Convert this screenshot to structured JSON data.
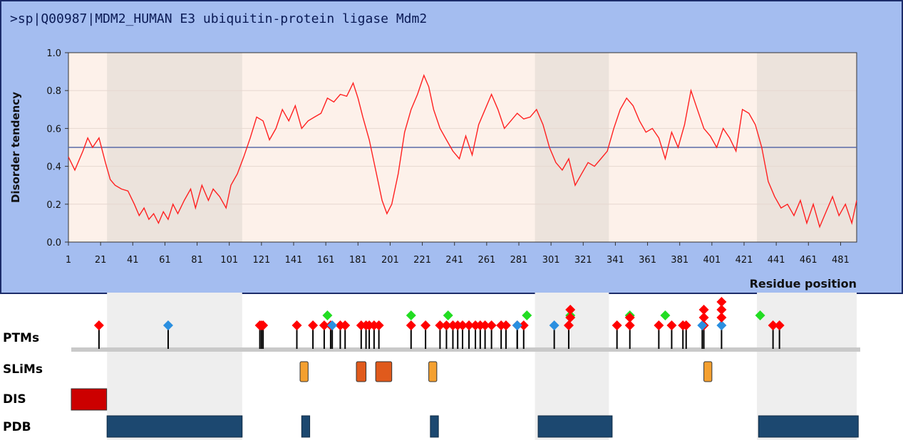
{
  "header": {
    "title": ">sp|Q00987|MDM2_HUMAN E3 ubiquitin-protein ligase Mdm2"
  },
  "colors": {
    "panel_bg": "#a4bdf0",
    "plot_bg": "#fdf1ea",
    "shaded_region": "#ece3dc",
    "disorder_line": "#ff2020",
    "threshold_line": "#5a6aa8",
    "ptm_red": "#ff0000",
    "ptm_blue": "#2a8fe0",
    "ptm_green": "#22dd22",
    "slim_orange": "#f4a030",
    "slim_darkorange": "#e05a1c",
    "dis_red": "#cc0000",
    "pdb_blue": "#1c4870"
  },
  "chart_data": {
    "type": "line",
    "title": "",
    "xlabel": "Residue position",
    "ylabel": "Disorder tendency",
    "xlim": [
      1,
      491
    ],
    "ylim": [
      0,
      1
    ],
    "x_ticks": [
      "1",
      "21",
      "41",
      "61",
      "81",
      "101",
      "121",
      "141",
      "161",
      "181",
      "201",
      "221",
      "241",
      "261",
      "281",
      "301",
      "321",
      "341",
      "361",
      "381",
      "401",
      "421",
      "441",
      "461",
      "481"
    ],
    "y_ticks": [
      "0.0",
      "0.2",
      "0.4",
      "0.6",
      "0.8",
      "1.0"
    ],
    "threshold": 0.5,
    "series": [
      {
        "x": [
          1,
          5,
          10,
          13,
          16,
          20,
          24,
          27,
          30,
          34,
          38,
          42,
          45,
          48,
          51,
          54,
          57,
          60,
          63,
          66,
          69,
          73,
          77,
          80,
          84,
          88,
          91,
          95,
          99,
          102,
          106,
          110,
          114,
          118,
          122,
          126,
          130,
          134,
          138,
          142,
          146,
          150,
          154,
          158,
          162,
          166,
          170,
          174,
          178,
          181,
          184,
          188,
          192,
          196,
          199,
          202,
          206,
          210,
          214,
          218,
          222,
          225,
          228,
          232,
          236,
          240,
          244,
          248,
          252,
          256,
          260,
          264,
          268,
          272,
          276,
          280,
          284,
          288,
          292,
          296,
          300,
          304,
          308,
          312,
          316,
          320,
          324,
          328,
          332,
          336,
          340,
          344,
          348,
          352,
          356,
          360,
          364,
          368,
          372,
          376,
          380,
          384,
          388,
          392,
          396,
          400,
          404,
          408,
          412,
          416,
          420,
          424,
          428,
          432,
          436,
          440,
          444,
          448,
          452,
          456,
          460,
          464,
          468,
          472,
          476,
          480,
          484,
          488,
          491
        ],
        "y": [
          0.45,
          0.38,
          0.48,
          0.55,
          0.5,
          0.55,
          0.42,
          0.33,
          0.3,
          0.28,
          0.27,
          0.2,
          0.14,
          0.18,
          0.12,
          0.15,
          0.1,
          0.16,
          0.12,
          0.2,
          0.15,
          0.22,
          0.28,
          0.18,
          0.3,
          0.22,
          0.28,
          0.24,
          0.18,
          0.3,
          0.36,
          0.45,
          0.55,
          0.66,
          0.64,
          0.54,
          0.6,
          0.7,
          0.64,
          0.72,
          0.6,
          0.64,
          0.66,
          0.68,
          0.76,
          0.74,
          0.78,
          0.77,
          0.84,
          0.76,
          0.66,
          0.54,
          0.38,
          0.22,
          0.15,
          0.2,
          0.36,
          0.58,
          0.7,
          0.78,
          0.88,
          0.82,
          0.7,
          0.6,
          0.54,
          0.48,
          0.44,
          0.56,
          0.46,
          0.62,
          0.7,
          0.78,
          0.7,
          0.6,
          0.64,
          0.68,
          0.65,
          0.66,
          0.7,
          0.62,
          0.5,
          0.42,
          0.38,
          0.44,
          0.3,
          0.36,
          0.42,
          0.4,
          0.44,
          0.48,
          0.6,
          0.7,
          0.76,
          0.72,
          0.64,
          0.58,
          0.6,
          0.55,
          0.44,
          0.58,
          0.5,
          0.62,
          0.8,
          0.7,
          0.6,
          0.56,
          0.5,
          0.6,
          0.55,
          0.48,
          0.7,
          0.68,
          0.62,
          0.5,
          0.32,
          0.24,
          0.18,
          0.2,
          0.14,
          0.22,
          0.1,
          0.2,
          0.08,
          0.16,
          0.24,
          0.14,
          0.2,
          0.1,
          0.22
        ]
      }
    ],
    "shaded_regions": [
      [
        25,
        109
      ],
      [
        291,
        337
      ],
      [
        429,
        491
      ]
    ]
  },
  "tracks": {
    "labels": [
      "PTMs",
      "SLiMs",
      "DIS",
      "PDB"
    ],
    "ptms": {
      "red": [
        20,
        120,
        121,
        122,
        143,
        153,
        160,
        164,
        170,
        173,
        183,
        186,
        188,
        191,
        194,
        214,
        223,
        232,
        236,
        240,
        243,
        246,
        250,
        254,
        257,
        260,
        264,
        270,
        273,
        280,
        284,
        312,
        342,
        350,
        368,
        376,
        383,
        385,
        396,
        439,
        443
      ],
      "blue": [
        63,
        165,
        280,
        303,
        395,
        407
      ],
      "green": [
        162,
        214,
        237,
        286,
        313,
        350,
        372,
        431
      ],
      "stacked_red": [
        [
          313,
          2
        ],
        [
          350,
          1
        ],
        [
          396,
          2
        ],
        [
          407,
          3
        ]
      ]
    },
    "slims": [
      {
        "start": 145,
        "end": 150,
        "kind": "orange"
      },
      {
        "start": 180,
        "end": 186,
        "kind": "darkorange"
      },
      {
        "start": 192,
        "end": 202,
        "kind": "darkorange"
      },
      {
        "start": 225,
        "end": 230,
        "kind": "orange"
      },
      {
        "start": 396,
        "end": 401,
        "kind": "orange"
      }
    ],
    "dis": [
      {
        "start": 1,
        "end": 23
      }
    ],
    "pdb": [
      {
        "start": 25,
        "end": 109
      },
      {
        "start": 146,
        "end": 151
      },
      {
        "start": 226,
        "end": 231
      },
      {
        "start": 293,
        "end": 339
      },
      {
        "start": 430,
        "end": 492
      }
    ]
  }
}
